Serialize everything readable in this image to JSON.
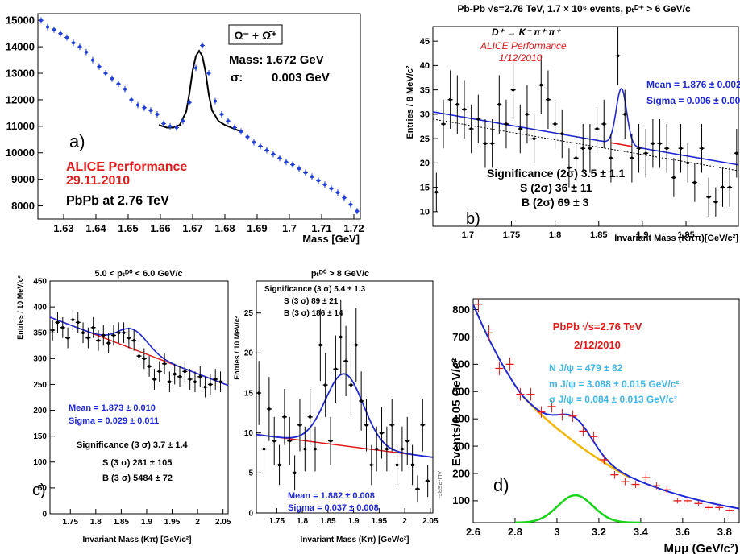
{
  "chart_data": [
    {
      "id": "a",
      "type": "scatter",
      "panel_label": "a)",
      "xlabel": "Mass [GeV]",
      "xlim": [
        1.622,
        1.722
      ],
      "ylim": [
        7500,
        15250
      ],
      "xticks": [
        1.63,
        1.64,
        1.65,
        1.66,
        1.67,
        1.68,
        1.69,
        1.7,
        1.71,
        1.72
      ],
      "yticks": [
        8000,
        9000,
        10000,
        11000,
        12000,
        13000,
        14000,
        15000
      ],
      "legend_box": "Ω⁻ + Ω̄⁺",
      "mass_label": "Mass:",
      "mass_value": "1.672 GeV",
      "sigma_label": "σ:",
      "sigma_value": "0.003 GeV",
      "perf_line1": "ALICE Performance",
      "perf_line2": "29.11.2010",
      "system": "PbPb at 2.76 TeV",
      "colors": {
        "points": "#1f3fd4",
        "fit": "#000000",
        "performance": "#e21a1a"
      },
      "x": [
        1.623,
        1.625,
        1.627,
        1.629,
        1.631,
        1.633,
        1.635,
        1.637,
        1.639,
        1.641,
        1.643,
        1.645,
        1.647,
        1.649,
        1.651,
        1.653,
        1.655,
        1.657,
        1.659,
        1.661,
        1.663,
        1.665,
        1.667,
        1.669,
        1.671,
        1.673,
        1.675,
        1.677,
        1.679,
        1.681,
        1.683,
        1.685,
        1.687,
        1.689,
        1.691,
        1.693,
        1.695,
        1.697,
        1.699,
        1.701,
        1.703,
        1.705,
        1.707,
        1.709,
        1.711,
        1.713,
        1.715,
        1.717,
        1.719,
        1.721
      ],
      "y": [
        15000,
        14750,
        14650,
        14500,
        14350,
        14150,
        14000,
        13800,
        13500,
        13250,
        13000,
        12800,
        12600,
        12400,
        12000,
        11800,
        11700,
        11600,
        11450,
        11100,
        11000,
        10950,
        11200,
        11900,
        13200,
        14050,
        13000,
        11950,
        11450,
        11200,
        10950,
        10800,
        10600,
        10400,
        10250,
        10100,
        9950,
        9800,
        9650,
        9550,
        9400,
        9250,
        9100,
        8950,
        8800,
        8650,
        8500,
        8300,
        8050,
        7800
      ],
      "fit": {
        "x": [
          1.6595,
          1.662,
          1.664,
          1.666,
          1.668,
          1.669,
          1.67,
          1.671,
          1.672,
          1.673,
          1.674,
          1.675,
          1.676,
          1.678,
          1.68,
          1.682,
          1.684,
          1.6855
        ],
        "y": [
          11050,
          10950,
          10950,
          11050,
          11550,
          12250,
          13100,
          13650,
          13850,
          13650,
          13050,
          12200,
          11600,
          11200,
          11050,
          10950,
          10850,
          10800
        ]
      }
    },
    {
      "id": "b",
      "type": "scatter",
      "panel_label": "b)",
      "title": "Pb-Pb √s=2.76 TeV, 1.7 × 10⁶ events, pₜᴰ⁺ > 6 GeV/c",
      "xlabel": "Invariant Mass (Kππ)[GeV/c²]",
      "ylabel": "Entries / 8 MeV/c²",
      "xlim": [
        1.66,
        2.01
      ],
      "ylim": [
        7,
        48
      ],
      "xticks": [
        1.7,
        1.75,
        1.8,
        1.85,
        1.9,
        1.95
      ],
      "yticks": [
        10,
        15,
        20,
        25,
        30,
        35,
        40,
        45
      ],
      "decay": "D⁺ → K⁻ π⁺ π⁺",
      "perf_line1": "ALICE Performance",
      "perf_line2": "1/12/2010",
      "mean": "Mean = 1.876 ± 0.002",
      "sigma": "Sigma = 0.006 ± 0.002",
      "significance": "Significance (2σ) 3.5 ± 1.1",
      "signal": "S (2σ) 36 ± 11",
      "background": "B (2σ) 69 ± 3",
      "colors": {
        "fit": "#1f28d6",
        "background_fit": "#e21a1a",
        "points": "#000000",
        "performance": "#e21a1a"
      },
      "x": [
        1.664,
        1.672,
        1.68,
        1.688,
        1.696,
        1.704,
        1.712,
        1.72,
        1.728,
        1.736,
        1.744,
        1.752,
        1.76,
        1.768,
        1.776,
        1.784,
        1.792,
        1.8,
        1.808,
        1.816,
        1.824,
        1.832,
        1.84,
        1.848,
        1.856,
        1.864,
        1.872,
        1.88,
        1.888,
        1.896,
        1.904,
        1.912,
        1.92,
        1.928,
        1.936,
        1.944,
        1.952,
        1.96,
        1.968,
        1.976,
        1.984,
        1.992,
        2.0,
        2.008
      ],
      "y": [
        14,
        28,
        33,
        32,
        31,
        27,
        29,
        24,
        24,
        32,
        28,
        35,
        27,
        30,
        25,
        36,
        33,
        28,
        26,
        19,
        21,
        23,
        23,
        27,
        28,
        21,
        42,
        30,
        21,
        23,
        22,
        24,
        24,
        23,
        17,
        23,
        20,
        16,
        23,
        13,
        12,
        15,
        15,
        22
      ],
      "err": [
        4,
        5,
        6,
        6,
        6,
        5,
        5,
        5,
        5,
        6,
        5,
        6,
        5,
        6,
        5,
        6,
        6,
        5,
        5,
        4,
        5,
        5,
        5,
        5,
        5,
        5,
        6,
        5,
        5,
        5,
        5,
        5,
        5,
        5,
        4,
        5,
        4,
        4,
        5,
        4,
        3,
        4,
        4,
        5
      ],
      "fit": {
        "x0": 1.66,
        "y0": 30.5,
        "x1": 2.01,
        "y1": 19.6,
        "peak_mean": 1.876,
        "peak_sigma": 0.006,
        "peak_amp": 11.5
      }
    },
    {
      "id": "c1",
      "type": "scatter",
      "title": "5.0 < pₜᴰ⁰ < 6.0 GeV/c",
      "xlabel": "Invariant Mass (Kπ) [GeV/c²]",
      "ylabel": "Entries / 10 MeV/c²",
      "xlim": [
        1.71,
        2.06
      ],
      "ylim": [
        0,
        450
      ],
      "xticks": [
        1.75,
        1.8,
        1.85,
        1.9,
        1.95,
        2,
        2.05
      ],
      "yticks": [
        0,
        50,
        100,
        150,
        200,
        250,
        300,
        350,
        400,
        450
      ],
      "mean": "Mean = 1.873 ± 0.010",
      "sigma": "Sigma = 0.029 ± 0.011",
      "significance": "Significance (3 σ) 3.7 ± 1.4",
      "signal": "S (3 σ) 281 ± 105",
      "background": "B (3 σ) 5484 ± 72",
      "colors": {
        "fit": "#1f28d6",
        "background_fit": "#e21a1a",
        "points": "#000000"
      },
      "x": [
        1.715,
        1.725,
        1.735,
        1.745,
        1.755,
        1.765,
        1.775,
        1.785,
        1.795,
        1.805,
        1.815,
        1.825,
        1.835,
        1.845,
        1.855,
        1.865,
        1.875,
        1.885,
        1.895,
        1.905,
        1.915,
        1.925,
        1.935,
        1.945,
        1.955,
        1.965,
        1.975,
        1.985,
        1.995,
        2.005,
        2.015,
        2.025,
        2.035,
        2.045
      ],
      "y": [
        355,
        370,
        360,
        340,
        375,
        370,
        350,
        340,
        360,
        335,
        345,
        330,
        345,
        350,
        350,
        340,
        335,
        305,
        300,
        285,
        260,
        275,
        290,
        255,
        270,
        265,
        275,
        260,
        255,
        265,
        245,
        250,
        260,
        255
      ],
      "err": [
        20,
        20,
        20,
        20,
        20,
        20,
        20,
        20,
        20,
        20,
        20,
        20,
        20,
        20,
        20,
        20,
        20,
        20,
        20,
        20,
        20,
        20,
        20,
        20,
        20,
        20,
        20,
        20,
        20,
        20,
        20,
        20,
        20,
        20
      ],
      "fit": {
        "x0": 1.71,
        "y0": 380,
        "x1": 2.055,
        "y1": 250,
        "peak_mean": 1.873,
        "peak_sigma": 0.029,
        "peak_amp": 38
      }
    },
    {
      "id": "c2",
      "type": "scatter",
      "panel_label": "c)",
      "title": "pₜᴰ⁰ > 8 GeV/c",
      "xlabel": "Invariant Mass (Kπ) [GeV/c²]",
      "ylabel": "Entries / 10 MeV/c²",
      "xlim": [
        1.71,
        2.055
      ],
      "ylim": [
        0,
        29
      ],
      "xticks": [
        1.75,
        1.8,
        1.85,
        1.9,
        1.95,
        2,
        2.05
      ],
      "yticks": [
        0,
        5,
        10,
        15,
        20,
        25
      ],
      "mean": "Mean = 1.882 ± 0.008",
      "sigma": "Sigma = 0.037 ± 0.008",
      "significance": "Significance (3 σ) 5.4 ± 1.3",
      "signal": "S (3 σ) 89 ± 21",
      "background": "B (3 σ) 186 ± 14",
      "side_text": "ALI-PERF-",
      "colors": {
        "fit": "#1f28d6",
        "background_fit": "#e21a1a",
        "points": "#000000",
        "stats": "#1f28d6"
      },
      "x": [
        1.715,
        1.725,
        1.735,
        1.745,
        1.755,
        1.765,
        1.775,
        1.785,
        1.795,
        1.805,
        1.815,
        1.825,
        1.835,
        1.845,
        1.855,
        1.865,
        1.875,
        1.885,
        1.895,
        1.905,
        1.915,
        1.925,
        1.935,
        1.945,
        1.955,
        1.965,
        1.975,
        1.985,
        1.995,
        2.005,
        2.015,
        2.025,
        2.035,
        2.045
      ],
      "y": [
        15,
        8,
        13,
        9,
        6,
        12,
        9,
        5,
        11,
        8,
        12,
        8,
        21,
        16,
        9,
        18,
        22,
        19,
        16,
        21,
        14,
        11,
        6,
        8,
        10,
        8,
        11,
        6,
        8,
        9,
        6,
        3,
        11,
        4
      ],
      "err": [
        4,
        3,
        4,
        3,
        2.5,
        3.5,
        3,
        2.2,
        3.3,
        2.8,
        3.5,
        2.8,
        4.5,
        4,
        3,
        4.2,
        4.7,
        4.4,
        4,
        4.6,
        3.7,
        3.3,
        2.5,
        2.8,
        3.2,
        2.8,
        3.3,
        2.5,
        2.8,
        3,
        2.5,
        1.7,
        3.3,
        2
      ],
      "fit": {
        "x0": 1.71,
        "y0": 9.8,
        "x1": 2.05,
        "y1": 7.0,
        "peak_mean": 1.882,
        "peak_sigma": 0.037,
        "peak_amp": 9.0
      }
    },
    {
      "id": "d",
      "type": "scatter",
      "panel_label": "d)",
      "title": "PbPb √s=2.76 TeV",
      "date": "2/12/2010",
      "xlabel": "Mμμ (GeV/c²)",
      "ylabel": "Events/0.05 GeV/c²",
      "xlim": [
        2.6,
        3.87
      ],
      "ylim": [
        20,
        840
      ],
      "xticks": [
        2.6,
        2.8,
        3,
        3.2,
        3.4,
        3.6,
        3.8
      ],
      "yticks": [
        100,
        200,
        300,
        400,
        500,
        600,
        700,
        800
      ],
      "n_jpsi": "N J/ψ = 479 ± 82",
      "m_jpsi": "m J/ψ = 3.088 ± 0.015 GeV/c²",
      "s_jpsi": "σ J/ψ = 0.084 ± 0.013 GeV/c²",
      "colors": {
        "points": "#e21a1a",
        "total_fit": "#1f28d6",
        "background": "#f2b705",
        "signal": "#18d418",
        "title": "#e21a1a",
        "stats": "#3fb7e8"
      },
      "x": [
        2.625,
        2.675,
        2.725,
        2.775,
        2.825,
        2.875,
        2.925,
        2.975,
        3.025,
        3.075,
        3.125,
        3.175,
        3.225,
        3.275,
        3.325,
        3.375,
        3.425,
        3.475,
        3.525,
        3.575,
        3.625,
        3.675,
        3.725,
        3.775,
        3.825
      ],
      "y": [
        820,
        715,
        585,
        600,
        490,
        490,
        425,
        445,
        415,
        410,
        355,
        335,
        250,
        195,
        170,
        160,
        185,
        155,
        140,
        100,
        100,
        90,
        75,
        75,
        65
      ],
      "err": [
        30,
        28,
        25,
        25,
        23,
        23,
        21,
        22,
        21,
        21,
        19,
        19,
        16,
        14,
        13,
        13,
        14,
        13,
        12,
        10,
        10,
        10,
        9,
        9,
        8
      ],
      "background_fit": {
        "x": [
          2.84,
          2.9,
          2.95,
          3.0,
          3.05,
          3.1,
          3.15,
          3.2,
          3.25,
          3.3,
          3.35
        ],
        "y": [
          480,
          433,
          398,
          365,
          335,
          305,
          278,
          252,
          228,
          205,
          184
        ]
      },
      "signal_fit": {
        "mean": 3.088,
        "sigma": 0.084,
        "amp": 100
      }
    }
  ]
}
